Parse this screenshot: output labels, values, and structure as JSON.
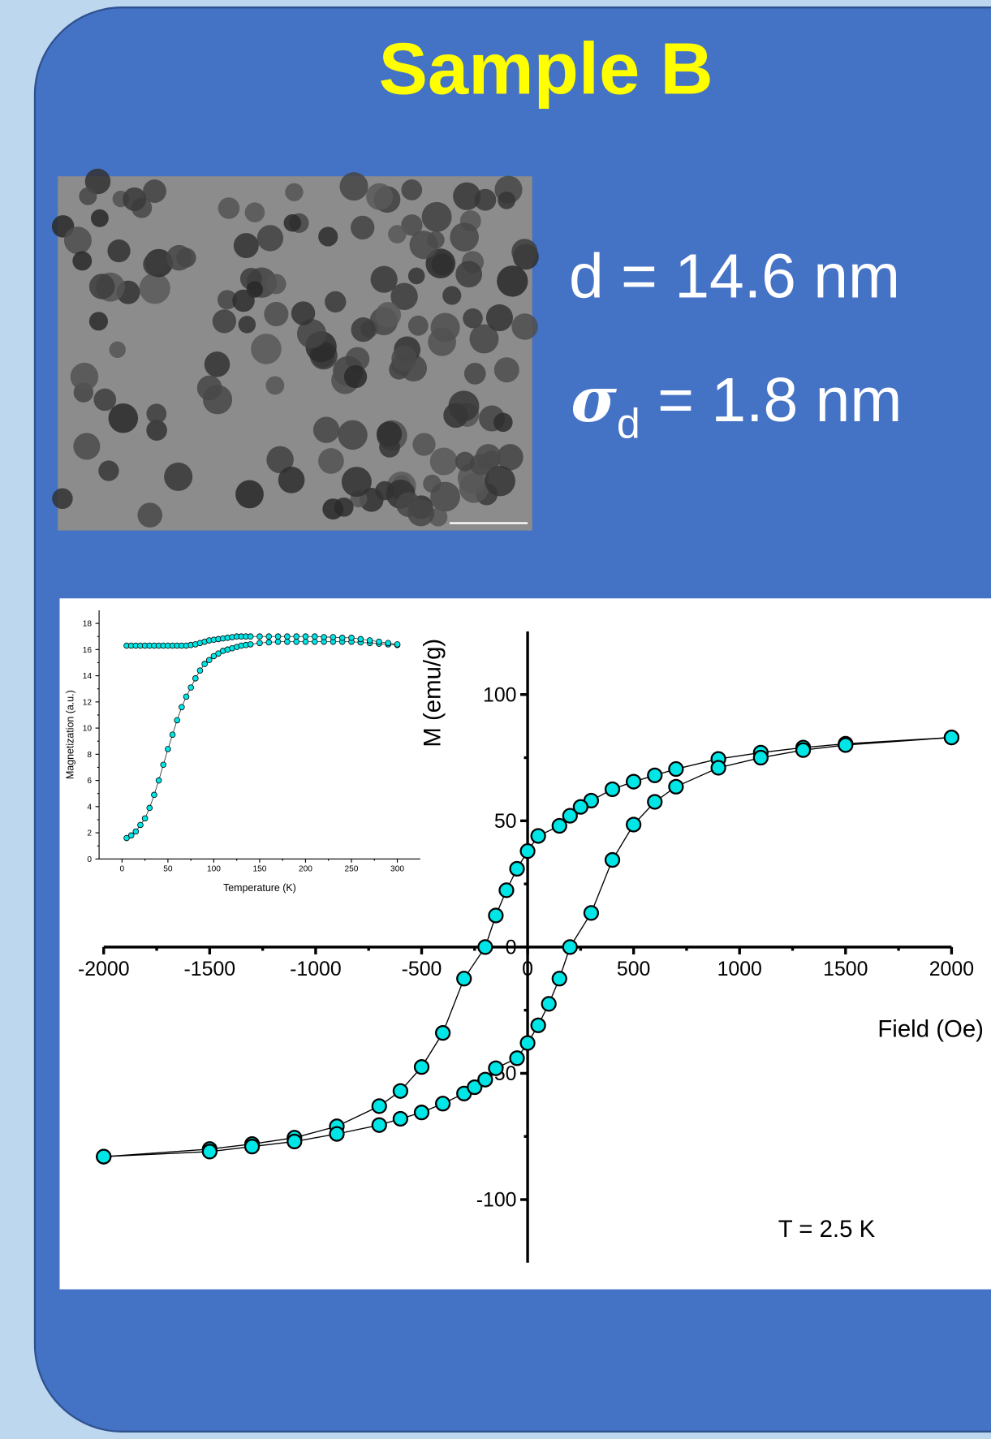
{
  "title": "Sample B",
  "stats": {
    "diameter": "d = 14.6 nm",
    "sigma_symbol": "σ",
    "sigma_subscript": "d",
    "sigma_value": " = 1.8 nm"
  },
  "chart_data": [
    {
      "type": "scatter",
      "xlabel": "Field (Oe)",
      "ylabel": "M (emu/g)",
      "annotation": "T = 2.5 K",
      "xlim": [
        -2000,
        2000
      ],
      "ylim": [
        -125,
        125
      ],
      "xticks": [
        -2000,
        -1500,
        -1000,
        -500,
        0,
        500,
        1000,
        1500,
        2000
      ],
      "yticks": [
        -100,
        -50,
        0,
        50,
        100
      ],
      "connect": true,
      "series": [
        {
          "color": "#00e5e5",
          "x": [
            2000,
            1500,
            1300,
            1100,
            900,
            700,
            600,
            500,
            400,
            300,
            250,
            200,
            150,
            50,
            0,
            -50,
            -100,
            -150,
            -200,
            -300,
            -400,
            -500,
            -600,
            -700,
            -900,
            -1100,
            -1300,
            -1500,
            -2000
          ],
          "values": [
            83,
            80.5,
            79,
            77,
            74.5,
            70.5,
            68,
            65.5,
            62.5,
            58,
            55.5,
            52,
            48,
            44,
            38,
            31,
            22.5,
            12.5,
            0,
            -12.5,
            -34,
            -47.5,
            -57,
            -63,
            -71,
            -75.5,
            -78,
            -80,
            -83
          ]
        },
        {
          "color": "#00e5e5",
          "x": [
            -2000,
            -1500,
            -1300,
            -1100,
            -900,
            -700,
            -600,
            -500,
            -400,
            -300,
            -250,
            -200,
            -150,
            -50,
            0,
            50,
            100,
            150,
            200,
            300,
            400,
            500,
            600,
            700,
            900,
            1100,
            1300,
            1500,
            2000
          ],
          "values": [
            -83,
            -81,
            -79,
            -77,
            -74,
            -70.5,
            -68,
            -65.5,
            -62,
            -58,
            -55.5,
            -52.5,
            -48,
            -44,
            -38,
            -31,
            -22.5,
            -12.5,
            0,
            13.5,
            34.5,
            48.5,
            57.5,
            63.5,
            71,
            75,
            78,
            80,
            83
          ]
        }
      ]
    },
    {
      "type": "scatter",
      "xlabel": "Temperature (K)",
      "ylabel": "Magnetization (a.u.)",
      "xlim": [
        -25,
        325
      ],
      "ylim": [
        0,
        19
      ],
      "xticks": [
        0,
        50,
        100,
        150,
        200,
        250,
        300
      ],
      "yticks": [
        0,
        2,
        4,
        6,
        8,
        10,
        12,
        14,
        16,
        18
      ],
      "connect": true,
      "series": [
        {
          "color": "#00e5e5",
          "x": [
            5,
            10,
            15,
            20,
            25,
            30,
            35,
            40,
            45,
            50,
            55,
            60,
            65,
            70,
            75,
            80,
            85,
            90,
            95,
            100,
            105,
            110,
            115,
            120,
            125,
            130,
            135,
            140,
            150,
            160,
            170,
            180,
            190,
            200,
            210,
            220,
            230,
            240,
            250,
            260,
            270,
            280,
            290,
            300
          ],
          "values": [
            1.6,
            1.8,
            2.1,
            2.6,
            3.1,
            3.9,
            4.9,
            6.0,
            7.2,
            8.4,
            9.5,
            10.6,
            11.6,
            12.4,
            13.1,
            13.8,
            14.4,
            14.9,
            15.2,
            15.5,
            15.7,
            15.9,
            16.0,
            16.1,
            16.2,
            16.3,
            16.35,
            16.4,
            16.5,
            16.55,
            16.6,
            16.6,
            16.6,
            16.6,
            16.6,
            16.6,
            16.6,
            16.6,
            16.6,
            16.55,
            16.5,
            16.45,
            16.4,
            16.35
          ]
        },
        {
          "color": "#00e5e5",
          "x": [
            5,
            10,
            15,
            20,
            25,
            30,
            35,
            40,
            45,
            50,
            55,
            60,
            65,
            70,
            75,
            80,
            85,
            90,
            95,
            100,
            105,
            110,
            115,
            120,
            125,
            130,
            135,
            140,
            150,
            160,
            170,
            180,
            190,
            200,
            210,
            220,
            230,
            240,
            250,
            260,
            270,
            280,
            290,
            300
          ],
          "values": [
            16.3,
            16.3,
            16.3,
            16.3,
            16.3,
            16.3,
            16.3,
            16.3,
            16.3,
            16.3,
            16.3,
            16.3,
            16.3,
            16.3,
            16.35,
            16.4,
            16.5,
            16.6,
            16.7,
            16.75,
            16.8,
            16.85,
            16.9,
            16.95,
            17.0,
            17.0,
            17.0,
            17.0,
            17.0,
            17.0,
            17.0,
            17.0,
            17.0,
            17.0,
            17.0,
            16.95,
            16.95,
            16.9,
            16.9,
            16.8,
            16.7,
            16.6,
            16.5,
            16.4
          ]
        }
      ]
    }
  ]
}
